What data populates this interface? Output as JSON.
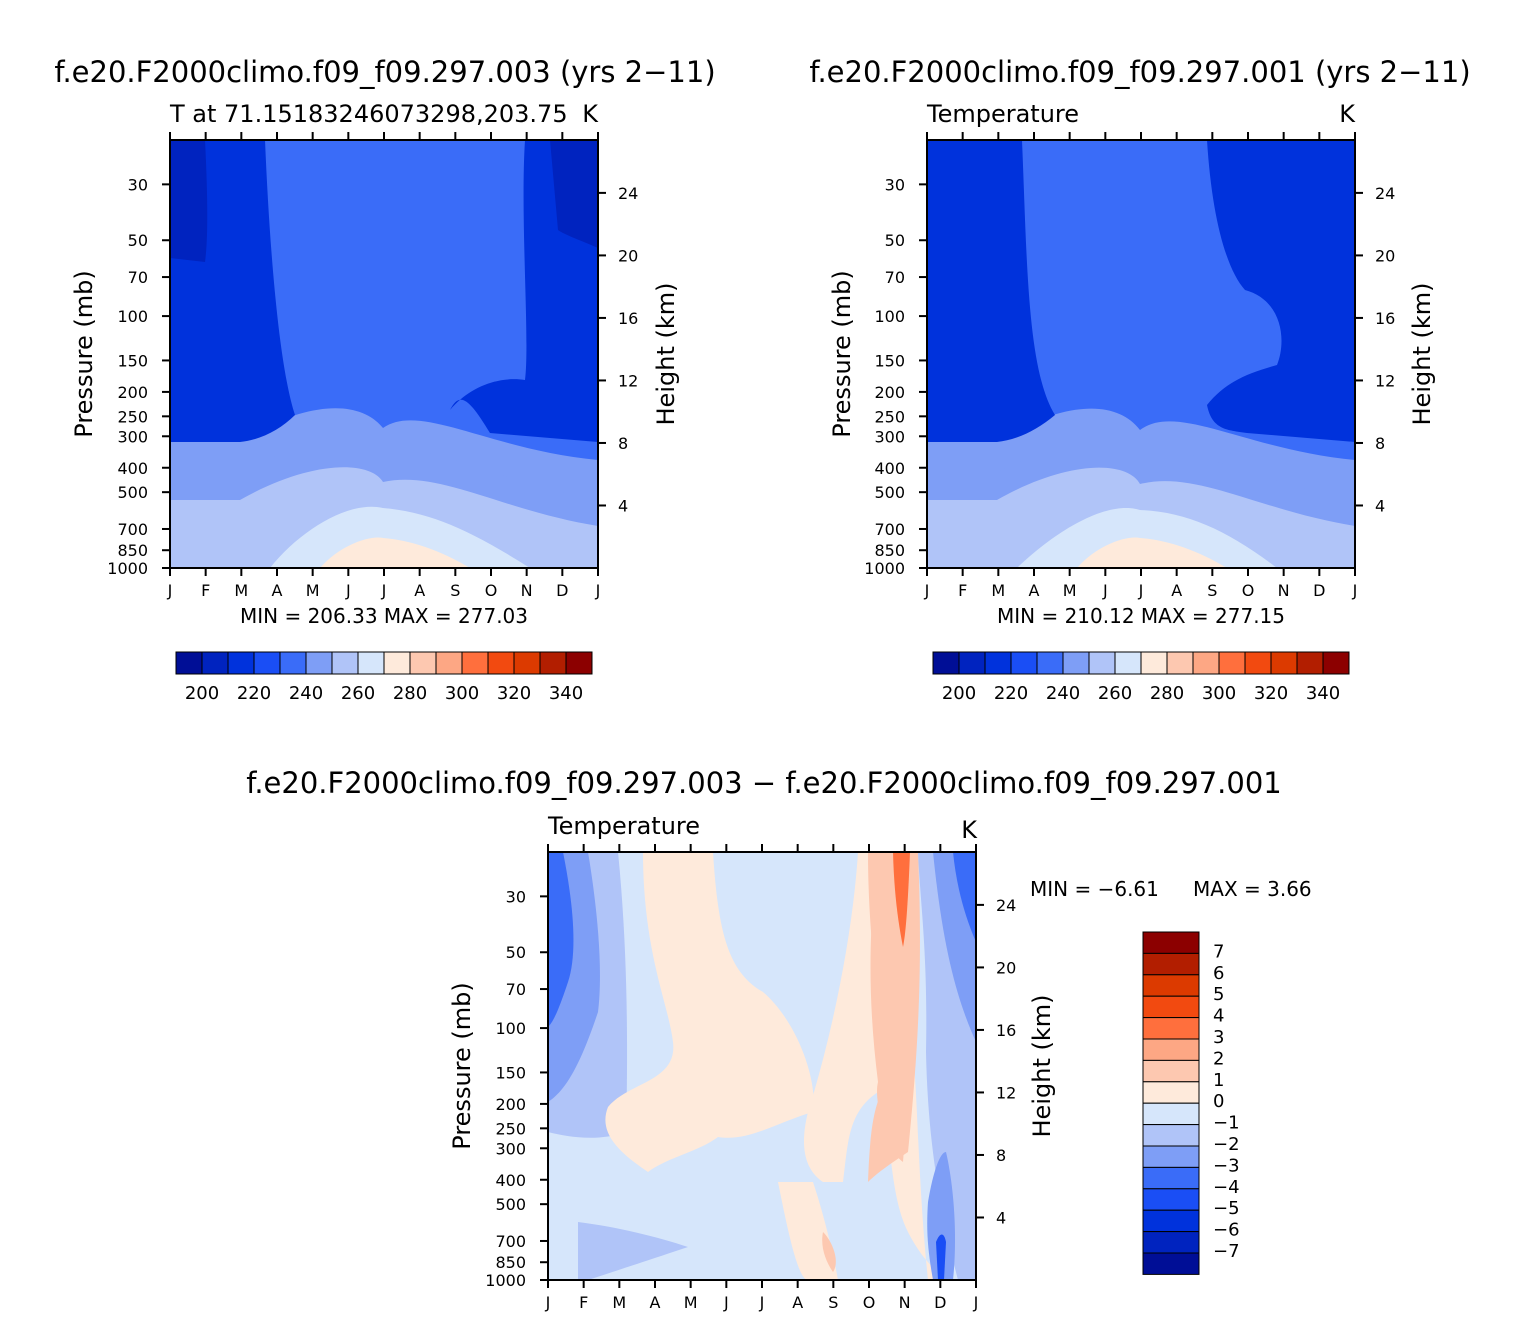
{
  "chart_data": [
    {
      "type": "heatmap",
      "title": "f.e20.F2000climo.f09_f09.297.003 (yrs 2−11)",
      "subtitle_left": "T at 71.15183246073298,203.75",
      "subtitle_right": "K",
      "xlabel": "",
      "ylabel": "Pressure (mb)",
      "ylabel_right": "Height (km)",
      "x_ticks": [
        "J",
        "F",
        "M",
        "A",
        "M",
        "J",
        "J",
        "A",
        "S",
        "O",
        "N",
        "D",
        "J"
      ],
      "y_ticks": [
        30,
        50,
        70,
        100,
        150,
        200,
        250,
        300,
        400,
        500,
        700,
        850,
        1000
      ],
      "y_right_ticks": [
        24,
        20,
        16,
        12,
        8,
        4
      ],
      "ylim": [
        1000,
        20
      ],
      "stats_text": "MIN = 206.33 MAX = 277.03",
      "min": 206.33,
      "max": 277.03,
      "colorbar_labels": [
        "200",
        "220",
        "240",
        "260",
        "280",
        "300",
        "320",
        "340"
      ],
      "colorbar_levels": [
        190,
        200,
        210,
        220,
        230,
        240,
        250,
        260,
        270,
        280,
        290,
        300,
        310,
        320,
        330,
        340,
        350
      ]
    },
    {
      "type": "heatmap",
      "title": "f.e20.F2000climo.f09_f09.297.001 (yrs 2−11)",
      "subtitle_left": "Temperature",
      "subtitle_right": "K",
      "ylabel": "Pressure (mb)",
      "ylabel_right": "Height (km)",
      "x_ticks": [
        "J",
        "F",
        "M",
        "A",
        "M",
        "J",
        "J",
        "A",
        "S",
        "O",
        "N",
        "D",
        "J"
      ],
      "y_ticks": [
        30,
        50,
        70,
        100,
        150,
        200,
        250,
        300,
        400,
        500,
        700,
        850,
        1000
      ],
      "y_right_ticks": [
        24,
        20,
        16,
        12,
        8,
        4
      ],
      "ylim": [
        1000,
        20
      ],
      "stats_text": "MIN = 210.12 MAX = 277.15",
      "min": 210.12,
      "max": 277.15,
      "colorbar_labels": [
        "200",
        "220",
        "240",
        "260",
        "280",
        "300",
        "320",
        "340"
      ]
    },
    {
      "type": "heatmap",
      "title": "f.e20.F2000climo.f09_f09.297.003 − f.e20.F2000climo.f09_f09.297.001",
      "subtitle_left": "Temperature",
      "subtitle_right": "K",
      "ylabel": "Pressure (mb)",
      "ylabel_right": "Height (km)",
      "x_ticks": [
        "J",
        "F",
        "M",
        "A",
        "M",
        "J",
        "J",
        "A",
        "S",
        "O",
        "N",
        "D",
        "J"
      ],
      "y_ticks": [
        30,
        50,
        70,
        100,
        150,
        200,
        250,
        300,
        400,
        500,
        700,
        850,
        1000
      ],
      "y_right_ticks": [
        24,
        20,
        16,
        12,
        8,
        4
      ],
      "ylim": [
        1000,
        20
      ],
      "stats_text_min": "MIN = −6.61",
      "stats_text_max": "MAX = 3.66",
      "min": -6.61,
      "max": 3.66,
      "colorbar_labels": [
        "7",
        "6",
        "5",
        "4",
        "3",
        "2",
        "1",
        "0",
        "−1",
        "−2",
        "−3",
        "−4",
        "−5",
        "−6",
        "−7"
      ],
      "colorbar_levels": [
        -8,
        -7,
        -6,
        -5,
        -4,
        -3,
        -2,
        -1,
        0,
        1,
        2,
        3,
        4,
        5,
        6,
        7,
        8
      ]
    }
  ],
  "palette": [
    "#000e96",
    "#0023bf",
    "#0032dc",
    "#1a4ef5",
    "#3a6cf8",
    "#7e9ef6",
    "#b0c4f8",
    "#d6e6fb",
    "#feeadb",
    "#fdc8b0",
    "#fda784",
    "#ff6f3d",
    "#f24a10",
    "#dc3a00",
    "#b21e00",
    "#8c0000"
  ]
}
